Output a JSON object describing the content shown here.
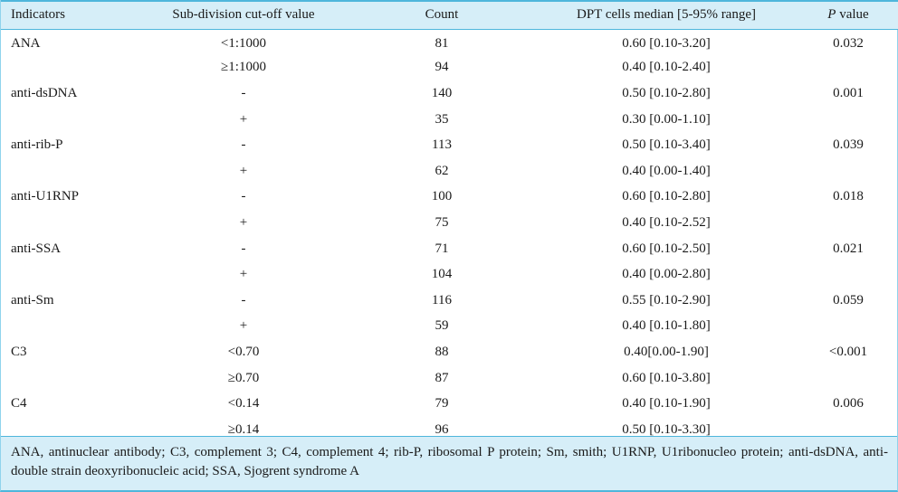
{
  "headers": {
    "indicators": "Indicators",
    "subdivision": "Sub-division cut-off value",
    "count": "Count",
    "median": "DPT cells median [5-95% range]",
    "p_prefix": "P",
    "p_suffix": " value"
  },
  "rows": [
    {
      "indicator": "ANA",
      "cutoff": "<1:1000",
      "count": "81",
      "median": "0.60 [0.10-3.20]",
      "p": "0.032"
    },
    {
      "indicator": "",
      "cutoff": "≥1:1000",
      "count": "94",
      "median": "0.40 [0.10-2.40]",
      "p": ""
    },
    {
      "indicator": "anti-dsDNA",
      "cutoff": "-",
      "count": "140",
      "median": "0.50 [0.10-2.80]",
      "p": "0.001"
    },
    {
      "indicator": "",
      "cutoff": "+",
      "count": "35",
      "median": "0.30 [0.00-1.10]",
      "p": ""
    },
    {
      "indicator": "anti-rib-P",
      "cutoff": "-",
      "count": "113",
      "median": "0.50 [0.10-3.40]",
      "p": "0.039"
    },
    {
      "indicator": "",
      "cutoff": "+",
      "count": "62",
      "median": "0.40 [0.00-1.40]",
      "p": ""
    },
    {
      "indicator": "anti-U1RNP",
      "cutoff": "-",
      "count": "100",
      "median": "0.60 [0.10-2.80]",
      "p": "0.018"
    },
    {
      "indicator": "",
      "cutoff": "+",
      "count": "75",
      "median": "0.40 [0.10-2.52]",
      "p": ""
    },
    {
      "indicator": "anti-SSA",
      "cutoff": "-",
      "count": "71",
      "median": "0.60 [0.10-2.50]",
      "p": "0.021"
    },
    {
      "indicator": "",
      "cutoff": "+",
      "count": "104",
      "median": "0.40 [0.00-2.80]",
      "p": ""
    },
    {
      "indicator": "anti-Sm",
      "cutoff": "-",
      "count": "116",
      "median": "0.55 [0.10-2.90]",
      "p": "0.059"
    },
    {
      "indicator": "",
      "cutoff": "+",
      "count": "59",
      "median": "0.40 [0.10-1.80]",
      "p": ""
    },
    {
      "indicator": "C3",
      "cutoff": "<0.70",
      "count": "88",
      "median": "0.40[0.00-1.90]",
      "p": "<0.001"
    },
    {
      "indicator": "",
      "cutoff": "≥0.70",
      "count": "87",
      "median": "0.60 [0.10-3.80]",
      "p": ""
    },
    {
      "indicator": "C4",
      "cutoff": "<0.14",
      "count": "79",
      "median": "0.40 [0.10-1.90]",
      "p": "0.006"
    },
    {
      "indicator": "",
      "cutoff": "≥0.14",
      "count": "96",
      "median": "0.50 [0.10-3.30]",
      "p": ""
    }
  ],
  "footnote": "ANA, antinuclear antibody; C3, complement 3; C4, complement 4; rib-P, ribosomal P protein; Sm, smith; U1RNP, U1ribonucleo protein; anti-dsDNA, anti-double strain deoxyribonucleic acid; SSA, Sjogrent syndrome A",
  "colors": {
    "header_bg": "#d6eef8",
    "rule": "#4fb6dc"
  }
}
